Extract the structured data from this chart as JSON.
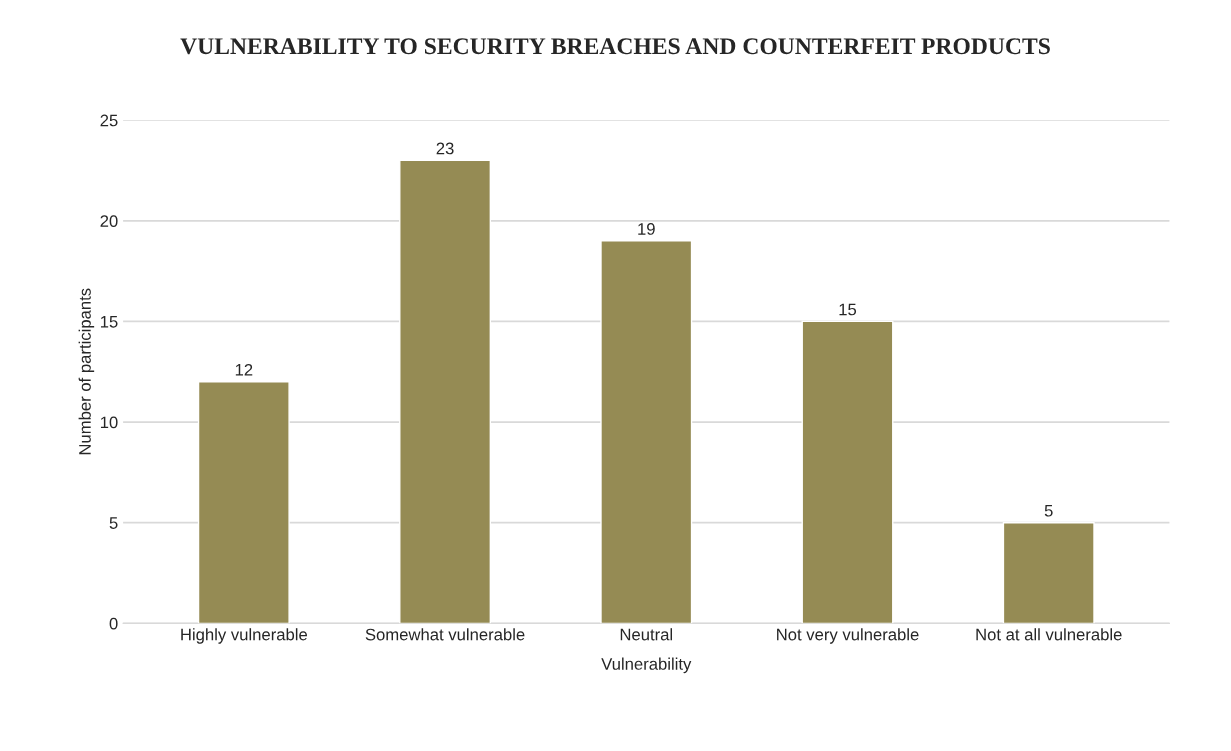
{
  "chart_data": {
    "type": "bar",
    "title": "VULNERABILITY TO SECURITY BREACHES AND COUNTERFEIT PRODUCTS",
    "xlabel": "Vulnerability",
    "ylabel": "Number of participants",
    "categories": [
      "Highly vulnerable",
      "Somewhat vulnerable",
      "Neutral",
      "Not very vulnerable",
      "Not at all vulnerable"
    ],
    "values": [
      12,
      23,
      19,
      15,
      5
    ],
    "color": "#958b54",
    "ylim": [
      0,
      25
    ],
    "yticks": [
      0,
      5,
      10,
      15,
      20,
      25
    ],
    "grid": "y",
    "data_labels": true
  }
}
